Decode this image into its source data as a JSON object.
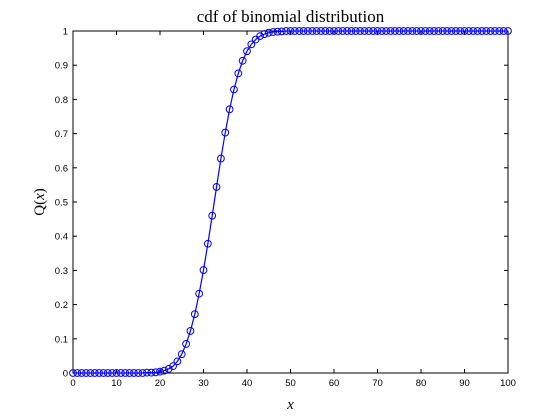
{
  "chart_data": {
    "type": "line",
    "title": "cdf of binomial distribution",
    "xlabel": "x",
    "ylabel_prefix": "Q(",
    "ylabel_var": "x",
    "ylabel_suffix": ")",
    "xlim": [
      0,
      100
    ],
    "ylim": [
      0,
      1
    ],
    "xticks": [
      0,
      10,
      20,
      30,
      40,
      50,
      60,
      70,
      80,
      90,
      100
    ],
    "xtick_labels": [
      "0",
      "10",
      "20",
      "30",
      "40",
      "50",
      "60",
      "70",
      "80",
      "90",
      "100"
    ],
    "yticks": [
      0,
      0.1,
      0.2,
      0.3,
      0.4,
      0.5,
      0.6,
      0.7,
      0.8,
      0.9,
      1
    ],
    "ytick_labels": [
      "0",
      "0.1",
      "0.2",
      "0.3",
      "0.4",
      "0.5",
      "0.6",
      "0.7",
      "0.8",
      "0.9",
      "1"
    ],
    "grid": false,
    "series": [
      {
        "color": "#0000ff",
        "marker": "circle",
        "x": [
          0,
          1,
          2,
          3,
          4,
          5,
          6,
          7,
          8,
          9,
          10,
          11,
          12,
          13,
          14,
          15,
          16,
          17,
          18,
          19,
          20,
          21,
          22,
          23,
          24,
          25,
          26,
          27,
          28,
          29,
          30,
          31,
          32,
          33,
          34,
          35,
          36,
          37,
          38,
          39,
          40,
          41,
          42,
          43,
          44,
          45,
          46,
          47,
          48,
          49,
          50,
          51,
          52,
          53,
          54,
          55,
          56,
          57,
          58,
          59,
          60,
          61,
          62,
          63,
          64,
          65,
          66,
          67,
          68,
          69,
          70,
          71,
          72,
          73,
          74,
          75,
          76,
          77,
          78,
          79,
          80,
          81,
          82,
          83,
          84,
          85,
          86,
          87,
          88,
          89,
          90,
          91,
          92,
          93,
          94,
          95,
          96,
          97,
          98,
          99,
          100
        ],
        "y": [
          0,
          0,
          0,
          0,
          0,
          0,
          0,
          0,
          0,
          0,
          0,
          0,
          0,
          0,
          0,
          0,
          0,
          0.001,
          0.001,
          0.002,
          0.004,
          0.007,
          0.012,
          0.02,
          0.034,
          0.055,
          0.085,
          0.123,
          0.172,
          0.232,
          0.301,
          0.378,
          0.46,
          0.544,
          0.627,
          0.703,
          0.771,
          0.829,
          0.876,
          0.913,
          0.941,
          0.961,
          0.975,
          0.985,
          0.991,
          0.995,
          0.997,
          0.998,
          0.999,
          1,
          1,
          1,
          1,
          1,
          1,
          1,
          1,
          1,
          1,
          1,
          1,
          1,
          1,
          1,
          1,
          1,
          1,
          1,
          1,
          1,
          1,
          1,
          1,
          1,
          1,
          1,
          1,
          1,
          1,
          1,
          1,
          1,
          1,
          1,
          1,
          1,
          1,
          1,
          1,
          1,
          1,
          1,
          1,
          1,
          1,
          1,
          1,
          1,
          1,
          1,
          1
        ]
      }
    ]
  }
}
